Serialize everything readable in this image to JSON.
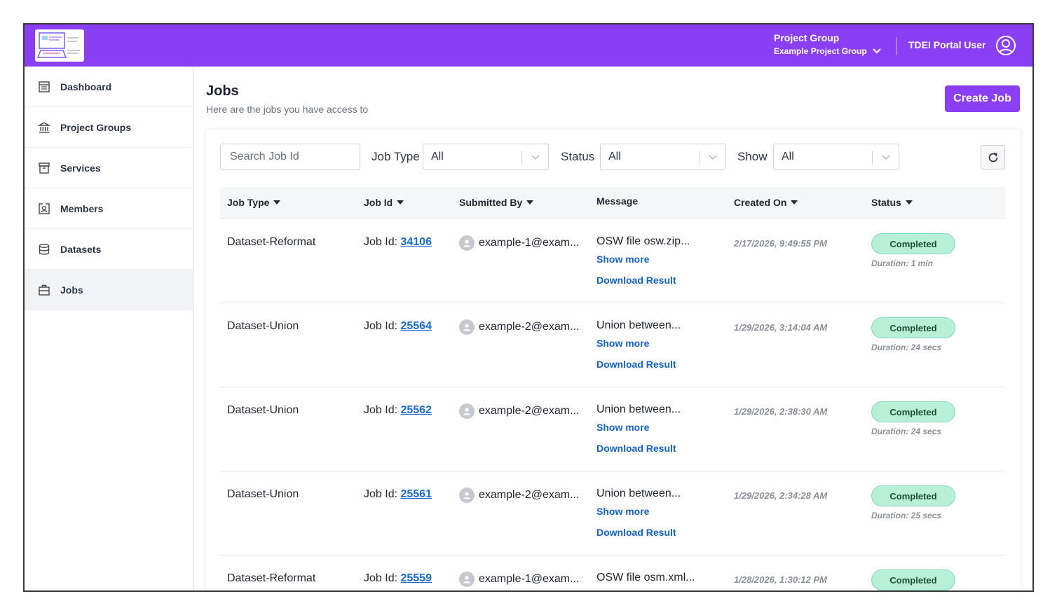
{
  "header": {
    "project_group_title": "Project Group",
    "project_group_value": "Example Project Group",
    "user_name": "TDEI Portal User",
    "brand_color": "#8a3ff4"
  },
  "sidebar": {
    "items": [
      {
        "label": "Dashboard",
        "icon": "dashboard-icon"
      },
      {
        "label": "Project Groups",
        "icon": "bank-icon"
      },
      {
        "label": "Services",
        "icon": "archive-icon"
      },
      {
        "label": "Members",
        "icon": "member-badge-icon"
      },
      {
        "label": "Datasets",
        "icon": "database-icon"
      },
      {
        "label": "Jobs",
        "icon": "briefcase-icon",
        "active": true
      }
    ]
  },
  "main": {
    "title": "Jobs",
    "subtitle": "Here are the jobs you have access to",
    "create_label": "Create Job"
  },
  "filters": {
    "search_placeholder": "Search Job Id",
    "job_type_label": "Job Type",
    "job_type_value": "All",
    "status_label": "Status",
    "status_value": "All",
    "show_label": "Show",
    "show_value": "All"
  },
  "table": {
    "headers": [
      "Job Type",
      "Job Id",
      "Submitted By",
      "Message",
      "Created On",
      "Status"
    ],
    "job_id_prefix": "Job Id: ",
    "show_more_label": "Show more",
    "download_label": "Download Result",
    "rows": [
      {
        "job_type": "Dataset-Reformat",
        "job_id": "34106",
        "submitted_by": "example-1@exam...",
        "message": "OSW file osw.zip...",
        "created_on": "2/17/2026, 9:49:55 PM",
        "status": "Completed",
        "duration": "Duration: 1 min"
      },
      {
        "job_type": "Dataset-Union",
        "job_id": "25564",
        "submitted_by": "example-2@exam...",
        "message": "Union between...",
        "created_on": "1/29/2026, 3:14:04 AM",
        "status": "Completed",
        "duration": "Duration: 24 secs"
      },
      {
        "job_type": "Dataset-Union",
        "job_id": "25562",
        "submitted_by": "example-2@exam...",
        "message": "Union between...",
        "created_on": "1/29/2026, 2:38:30 AM",
        "status": "Completed",
        "duration": "Duration: 24 secs"
      },
      {
        "job_type": "Dataset-Union",
        "job_id": "25561",
        "submitted_by": "example-2@exam...",
        "message": "Union between...",
        "created_on": "1/29/2026, 2:34:28 AM",
        "status": "Completed",
        "duration": "Duration: 25 secs"
      },
      {
        "job_type": "Dataset-Reformat",
        "job_id": "25559",
        "submitted_by": "example-1@exam...",
        "message": "OSW file osm.xml...",
        "created_on": "1/28/2026, 1:30:12 PM",
        "status": "Completed",
        "duration": ""
      }
    ]
  }
}
